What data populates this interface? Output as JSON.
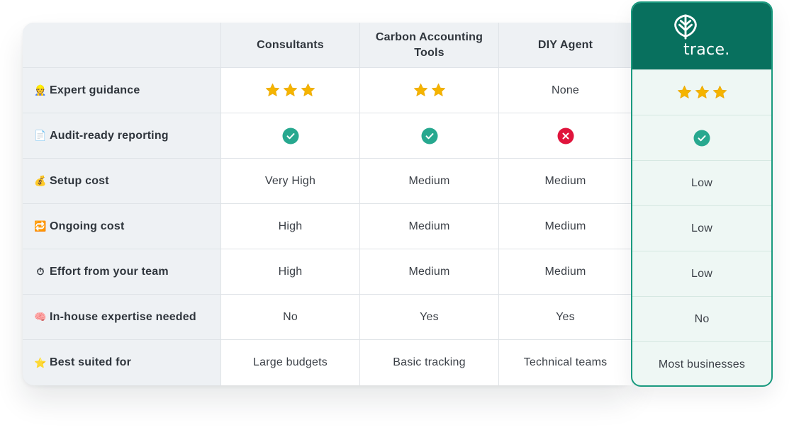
{
  "columns": [
    "Consultants",
    "Carbon Accounting Tools",
    "DIY Agent"
  ],
  "brand": {
    "name": "trace.",
    "logo_icon": "leaf-sprout-icon",
    "accent_color": "#08705e",
    "border_color": "#1a9a7f"
  },
  "rows": [
    {
      "emoji": "👷",
      "emoji_icon": "construction-worker-icon",
      "label": "Expert guidance",
      "cells": [
        {
          "type": "stars",
          "value": 3
        },
        {
          "type": "stars",
          "value": 2
        },
        {
          "type": "text",
          "value": "None"
        }
      ],
      "trace": {
        "type": "stars",
        "value": 3
      }
    },
    {
      "emoji": "📄",
      "emoji_icon": "document-icon",
      "label": "Audit-ready reporting",
      "cells": [
        {
          "type": "check",
          "value": "yes"
        },
        {
          "type": "check",
          "value": "yes"
        },
        {
          "type": "check",
          "value": "no"
        }
      ],
      "trace": {
        "type": "check",
        "value": "yes"
      }
    },
    {
      "emoji": "💰",
      "emoji_icon": "money-bag-icon",
      "label": "Setup cost",
      "cells": [
        {
          "type": "text",
          "value": "Very High"
        },
        {
          "type": "text",
          "value": "Medium"
        },
        {
          "type": "text",
          "value": "Medium"
        }
      ],
      "trace": {
        "type": "text",
        "value": "Low"
      }
    },
    {
      "emoji": "🔁",
      "emoji_icon": "repeat-icon",
      "label": "Ongoing cost",
      "cells": [
        {
          "type": "text",
          "value": "High"
        },
        {
          "type": "text",
          "value": "Medium"
        },
        {
          "type": "text",
          "value": "Medium"
        }
      ],
      "trace": {
        "type": "text",
        "value": "Low"
      }
    },
    {
      "emoji": "⏱",
      "emoji_icon": "stopwatch-icon",
      "label": "Effort from your team",
      "cells": [
        {
          "type": "text",
          "value": "High"
        },
        {
          "type": "text",
          "value": "Medium"
        },
        {
          "type": "text",
          "value": "Medium"
        }
      ],
      "trace": {
        "type": "text",
        "value": "Low"
      }
    },
    {
      "emoji": "🧠",
      "emoji_icon": "brain-icon",
      "label": "In-house expertise needed",
      "cells": [
        {
          "type": "text",
          "value": "No"
        },
        {
          "type": "text",
          "value": "Yes"
        },
        {
          "type": "text",
          "value": "Yes"
        }
      ],
      "trace": {
        "type": "text",
        "value": "No"
      }
    },
    {
      "emoji": "⭐",
      "emoji_icon": "star-icon",
      "label": "Best suited for",
      "cells": [
        {
          "type": "text",
          "value": "Large budgets"
        },
        {
          "type": "text",
          "value": "Basic tracking"
        },
        {
          "type": "text",
          "value": "Technical teams"
        }
      ],
      "trace": {
        "type": "text",
        "value": "Most businesses"
      }
    }
  ],
  "colors": {
    "star": "#f5b400",
    "check": "#27a88f",
    "cross": "#e0143c"
  }
}
